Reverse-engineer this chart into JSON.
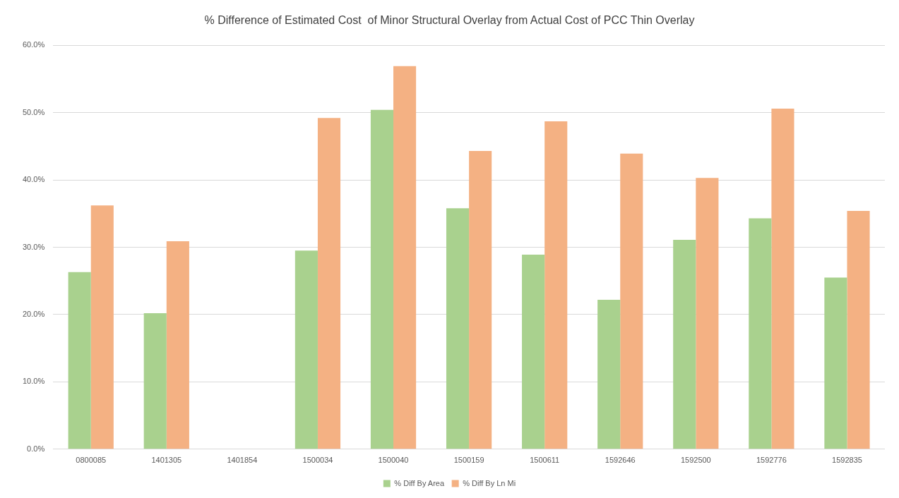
{
  "chart_data": {
    "type": "bar",
    "title": "% Difference of Estimated Cost  of Minor Structural Overlay from Actual Cost of PCC Thin Overlay",
    "categories": [
      "0800085",
      "1401305",
      "1401854",
      "1500034",
      "1500040",
      "1500159",
      "1500611",
      "1592646",
      "1592500",
      "1592776",
      "1592835"
    ],
    "series": [
      {
        "name": "% Diff By Area",
        "color": "#a9d18e",
        "values": [
          26.3,
          20.2,
          null,
          29.5,
          50.4,
          35.8,
          28.9,
          22.2,
          31.1,
          34.3,
          25.5
        ]
      },
      {
        "name": "% Diff By Ln Mi",
        "color": "#f4b183",
        "values": [
          36.2,
          30.9,
          null,
          49.2,
          56.9,
          44.3,
          48.7,
          43.9,
          40.3,
          50.6,
          35.4
        ]
      }
    ],
    "ylim": [
      0,
      60
    ],
    "yticks": [
      {
        "value": 0,
        "label": "0.0%"
      },
      {
        "value": 10,
        "label": "10.0%"
      },
      {
        "value": 20,
        "label": "20.0%"
      },
      {
        "value": 30,
        "label": "30.0%"
      },
      {
        "value": 40,
        "label": "40.0%"
      },
      {
        "value": 50,
        "label": "50.0%"
      },
      {
        "value": 60,
        "label": "60.0%"
      }
    ],
    "grid": "y",
    "legend": "bottom"
  }
}
